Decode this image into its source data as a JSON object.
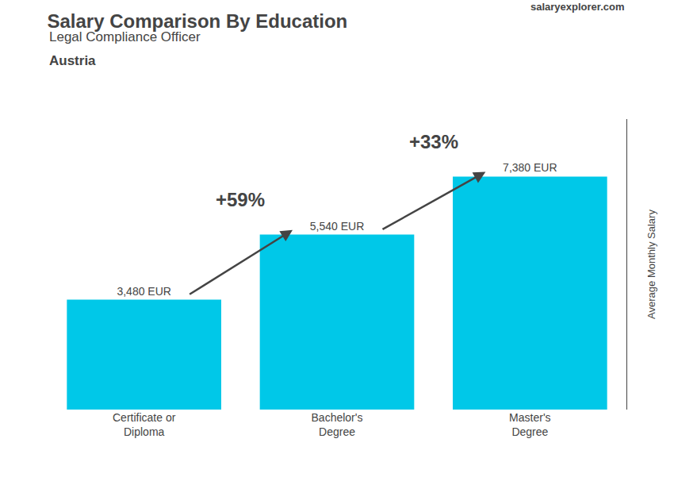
{
  "chart_data": {
    "type": "bar",
    "title": "Salary Comparison By Education",
    "subtitle": [
      "Legal Compliance Officer",
      "Austria"
    ],
    "source": "salaryexplorer.com",
    "ylabel": "Average Monthly Salary",
    "categories": [
      "Certificate or\nDiploma",
      "Bachelor's\nDegree",
      "Master's\nDegree"
    ],
    "values": [
      3480,
      5540,
      7380
    ],
    "value_labels": [
      "3,480 EUR",
      "5,540 EUR",
      "7,380 EUR"
    ],
    "data_labels": true,
    "annotations": [
      "+59%",
      "+33%"
    ],
    "color": "#00c8e8",
    "ylim": [
      0,
      9200
    ],
    "grid": false,
    "tick_labels": "x"
  }
}
